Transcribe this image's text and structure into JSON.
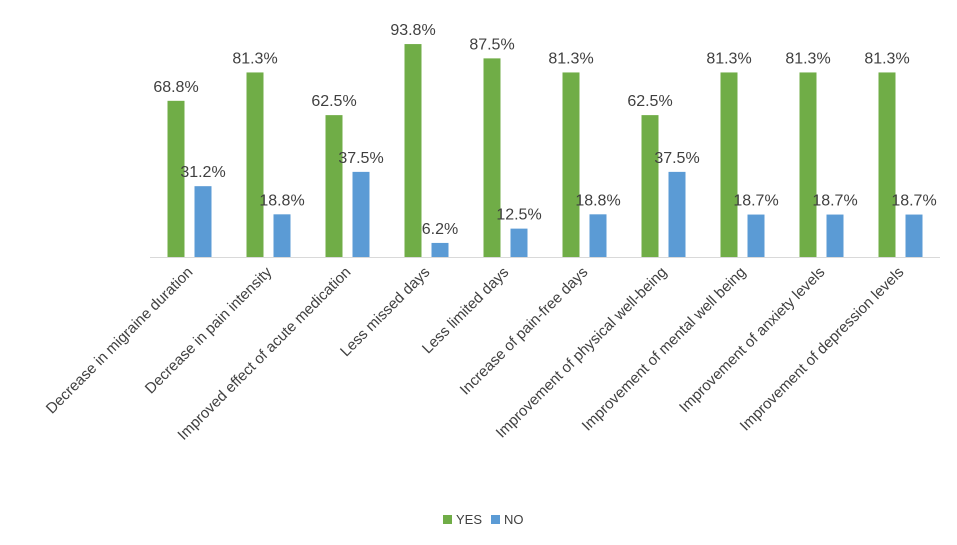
{
  "chart_data": {
    "type": "bar",
    "title": "",
    "xlabel": "",
    "ylabel": "",
    "ylim": [
      0,
      100
    ],
    "grid": false,
    "legend_position": "bottom",
    "categories": [
      "Decrease in migraine duration",
      "Decrease in pain intensity",
      "Improved effect of acute medication",
      "Less missed days",
      "Less limited days",
      "Increase of pain-free days",
      "Improvement of physical well-being",
      "Improvement of mental well being",
      "Improvement of anxiety levels",
      "Improvement of depression levels"
    ],
    "series": [
      {
        "name": "YES",
        "color": "#70ad47",
        "values": [
          68.8,
          81.3,
          62.5,
          93.8,
          87.5,
          81.3,
          62.5,
          81.3,
          81.3,
          81.3
        ],
        "labels": [
          "68.8%",
          "81.3%",
          "62.5%",
          "93.8%",
          "87.5%",
          "81.3%",
          "62.5%",
          "81.3%",
          "81.3%",
          "81.3%"
        ]
      },
      {
        "name": "NO",
        "color": "#5b9bd5",
        "values": [
          31.2,
          18.8,
          37.5,
          6.2,
          12.5,
          18.8,
          37.5,
          18.7,
          18.7,
          18.7
        ],
        "labels": [
          "31.2%",
          "18.8%",
          "37.5%",
          "6.2%",
          "12.5%",
          "18.8%",
          "37.5%",
          "18.7%",
          "18.7%",
          "18.7%"
        ]
      }
    ]
  }
}
